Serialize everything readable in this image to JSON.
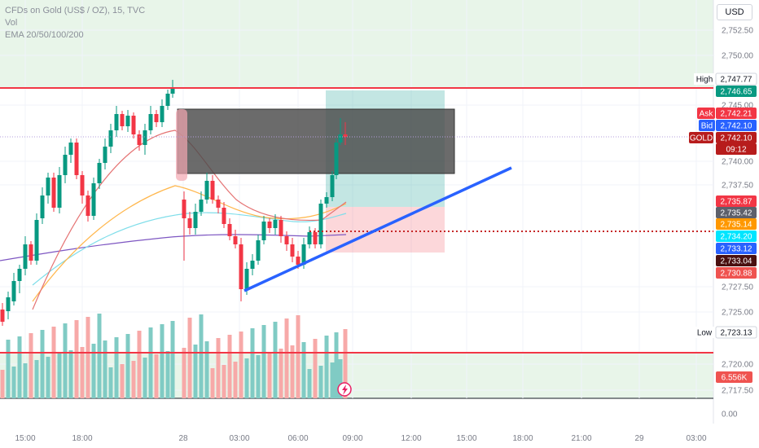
{
  "legend": {
    "symbol": "CFDs on Gold (US$ / OZ), 15, TVC",
    "volume": "Vol",
    "ema": "EMA 20/50/100/200"
  },
  "currency": "USD",
  "price_axis": {
    "ticks": [
      "2,752.50",
      "2,750.00",
      "2,745.00",
      "2,740.00",
      "2,737.50",
      "2,727.50",
      "2,725.00",
      "2,720.00",
      "2,717.50",
      "0.00"
    ]
  },
  "time_axis": {
    "labels": [
      "15:00",
      "18:00",
      "28",
      "03:00",
      "06:00",
      "09:00",
      "12:00",
      "15:00",
      "18:00",
      "21:00",
      "29",
      "03:00"
    ]
  },
  "price_tags": [
    {
      "name": "high-label",
      "text": "High",
      "kind": "label"
    },
    {
      "name": "high-price",
      "text": "2,747.77",
      "kind": "outline",
      "color": "#131722"
    },
    {
      "name": "tag-2746",
      "text": "2,746.65",
      "kind": "fill",
      "color": "#089981"
    },
    {
      "name": "ask-label",
      "text": "Ask",
      "kind": "fill",
      "color": "#f23645"
    },
    {
      "name": "ask-price",
      "text": "2,742.21",
      "kind": "fill",
      "color": "#f23645"
    },
    {
      "name": "bid-label",
      "text": "Bid",
      "kind": "fill",
      "color": "#2962ff"
    },
    {
      "name": "bid-price",
      "text": "2,742.10",
      "kind": "fill",
      "color": "#2962ff"
    },
    {
      "name": "gold-label",
      "text": "GOLD",
      "kind": "fill",
      "color": "#b71c1c"
    },
    {
      "name": "last-price",
      "text": "2,742.10",
      "kind": "fill",
      "color": "#b71c1c"
    },
    {
      "name": "countdown",
      "text": "09:12",
      "kind": "fill",
      "color": "#b71c1c"
    },
    {
      "name": "tag-2735-87",
      "text": "2,735.87",
      "kind": "fill",
      "color": "#f23645"
    },
    {
      "name": "tag-2735-42",
      "text": "2,735.42",
      "kind": "fill",
      "color": "#5d606b"
    },
    {
      "name": "tag-2735-14",
      "text": "2,735.14",
      "kind": "fill",
      "color": "#ff9800"
    },
    {
      "name": "tag-2734-20",
      "text": "2,734.20",
      "kind": "fill",
      "color": "#00e5ff"
    },
    {
      "name": "tag-2733-12",
      "text": "2,733.12",
      "kind": "fill",
      "color": "#2962ff"
    },
    {
      "name": "tag-2733-04",
      "text": "2,733.04",
      "kind": "fill",
      "color": "#4a1010"
    },
    {
      "name": "tag-2730-88",
      "text": "2,730.88",
      "kind": "fill",
      "color": "#ef5350"
    },
    {
      "name": "low-label",
      "text": "Low",
      "kind": "label"
    },
    {
      "name": "low-price",
      "text": "2,723.13",
      "kind": "outline",
      "color": "#131722"
    },
    {
      "name": "volume-tag",
      "text": "6.556K",
      "kind": "fill",
      "color": "#ef5350"
    }
  ],
  "colors": {
    "up": "#089981",
    "down": "#f23645",
    "zone_green": "#e8f5e9",
    "level_line": "#f23645",
    "trendline": "#2962ff",
    "box": "#4a4a4a"
  }
}
